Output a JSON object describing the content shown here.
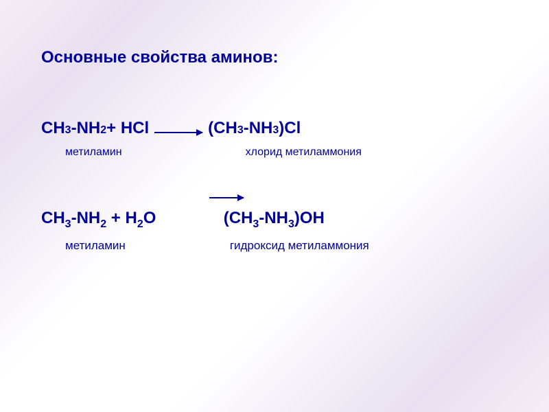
{
  "title": "Основные свойства аминов:",
  "equation1": {
    "reactant": "CH₃-NH₂ + HCl",
    "product": "(CH₃-NH₃)Cl",
    "reactant_label": "метиламин",
    "product_label": "хлорид метиламмония"
  },
  "equation2": {
    "reactant": "CH₃-NH₂ + H₂O",
    "product": "(CH₃-NH₃)OH",
    "reactant_label": "метиламин",
    "product_label": "гидроксид метиламмония"
  },
  "colors": {
    "text": "#000099",
    "background_gradient_edge": "#f5ecf5",
    "background_gradient_mid": "#e8e0f0",
    "background_center": "#ffffff"
  },
  "typography": {
    "title_fontsize": 24,
    "equation_fontsize": 24,
    "label_fontsize": 16,
    "font_family": "Arial"
  }
}
